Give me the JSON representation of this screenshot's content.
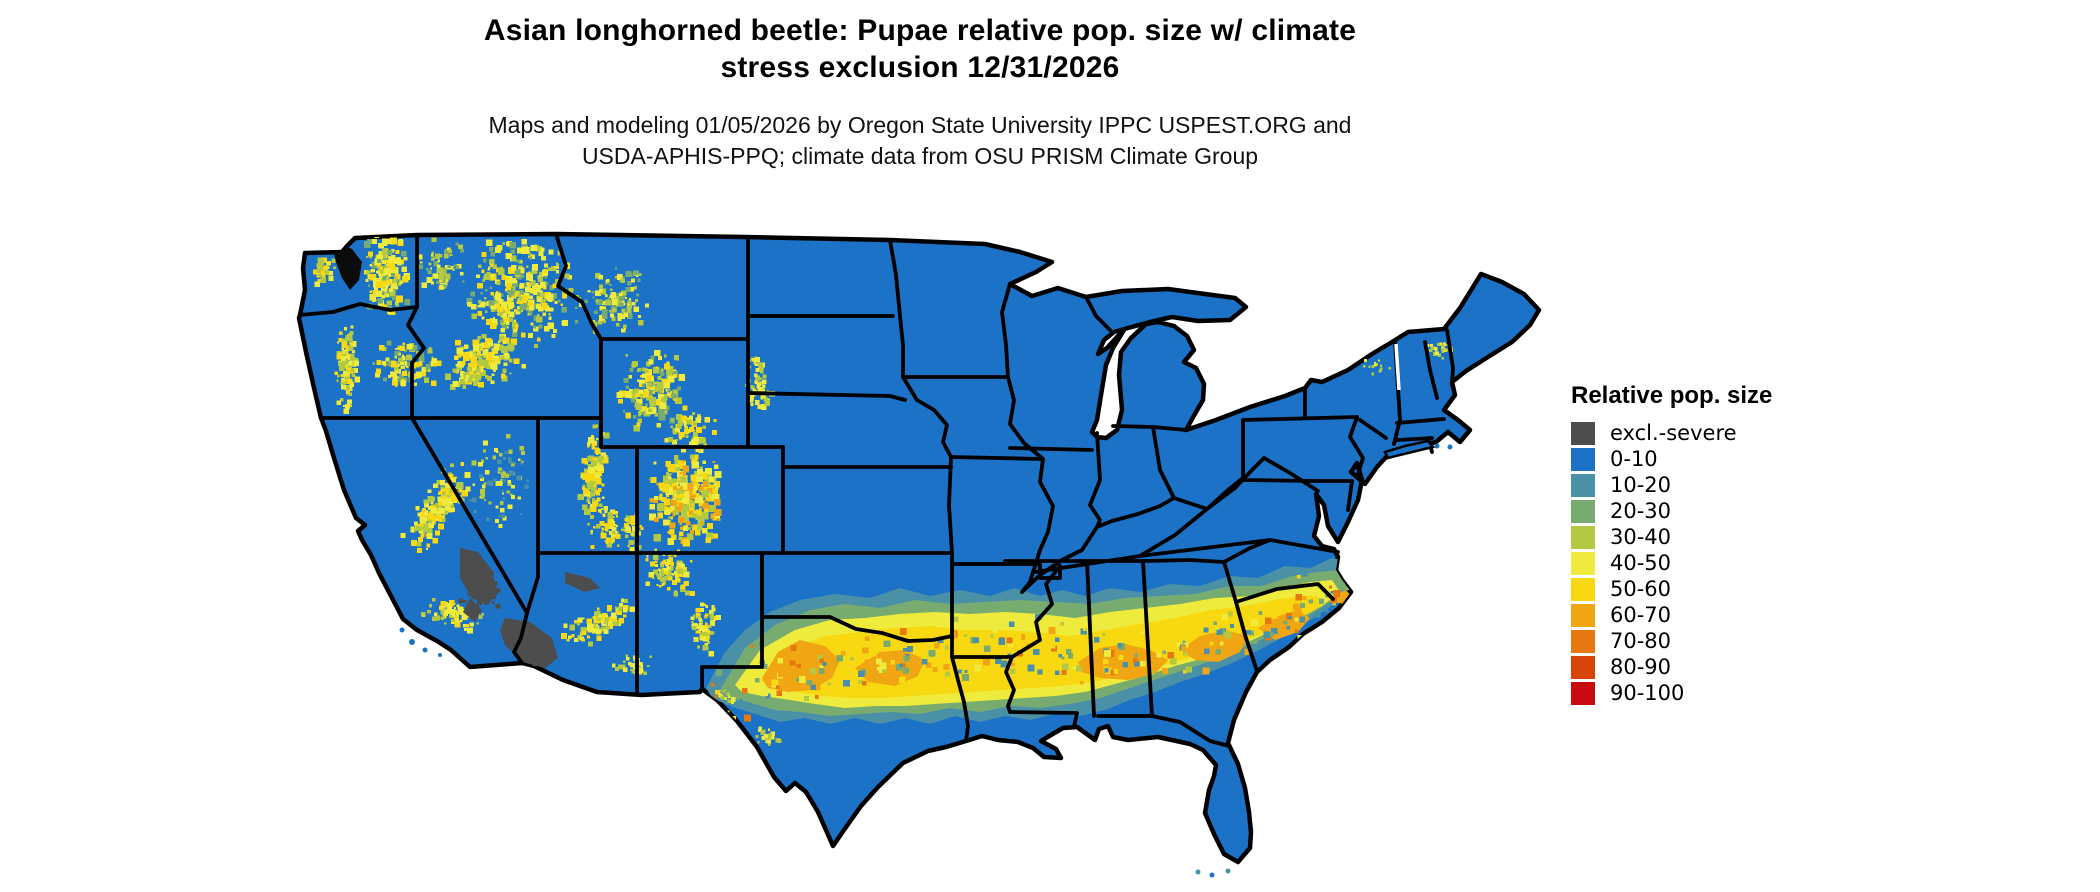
{
  "header": {
    "title_line1": "Asian longhorned beetle: Pupae relative pop. size w/ climate",
    "title_line2": "stress exclusion 12/31/2026",
    "subtitle_line1": "Maps and modeling 01/05/2026 by Oregon State University IPPC USPEST.ORG and",
    "subtitle_line2": "USDA-APHIS-PPQ; climate data from OSU PRISM Climate Group"
  },
  "legend": {
    "title": "Relative pop. size",
    "items": [
      {
        "label": "excl.-severe",
        "color": "#4d4d4d"
      },
      {
        "label": "0-10",
        "color": "#1b72c6"
      },
      {
        "label": "10-20",
        "color": "#4a91a8"
      },
      {
        "label": "20-30",
        "color": "#78ab70"
      },
      {
        "label": "30-40",
        "color": "#b4c942"
      },
      {
        "label": "40-50",
        "color": "#eeeb3d"
      },
      {
        "label": "50-60",
        "color": "#f8d810"
      },
      {
        "label": "60-70",
        "color": "#f0a512"
      },
      {
        "label": "70-80",
        "color": "#e5780e"
      },
      {
        "label": "80-90",
        "color": "#d84308"
      },
      {
        "label": "90-100",
        "color": "#c90b10"
      }
    ]
  },
  "map": {
    "region": "Contiguous United States",
    "land_color": "#1b72c6",
    "water_color": "#ffffff",
    "border_color": "#000000",
    "excluded_color": "#4d4d4d"
  }
}
